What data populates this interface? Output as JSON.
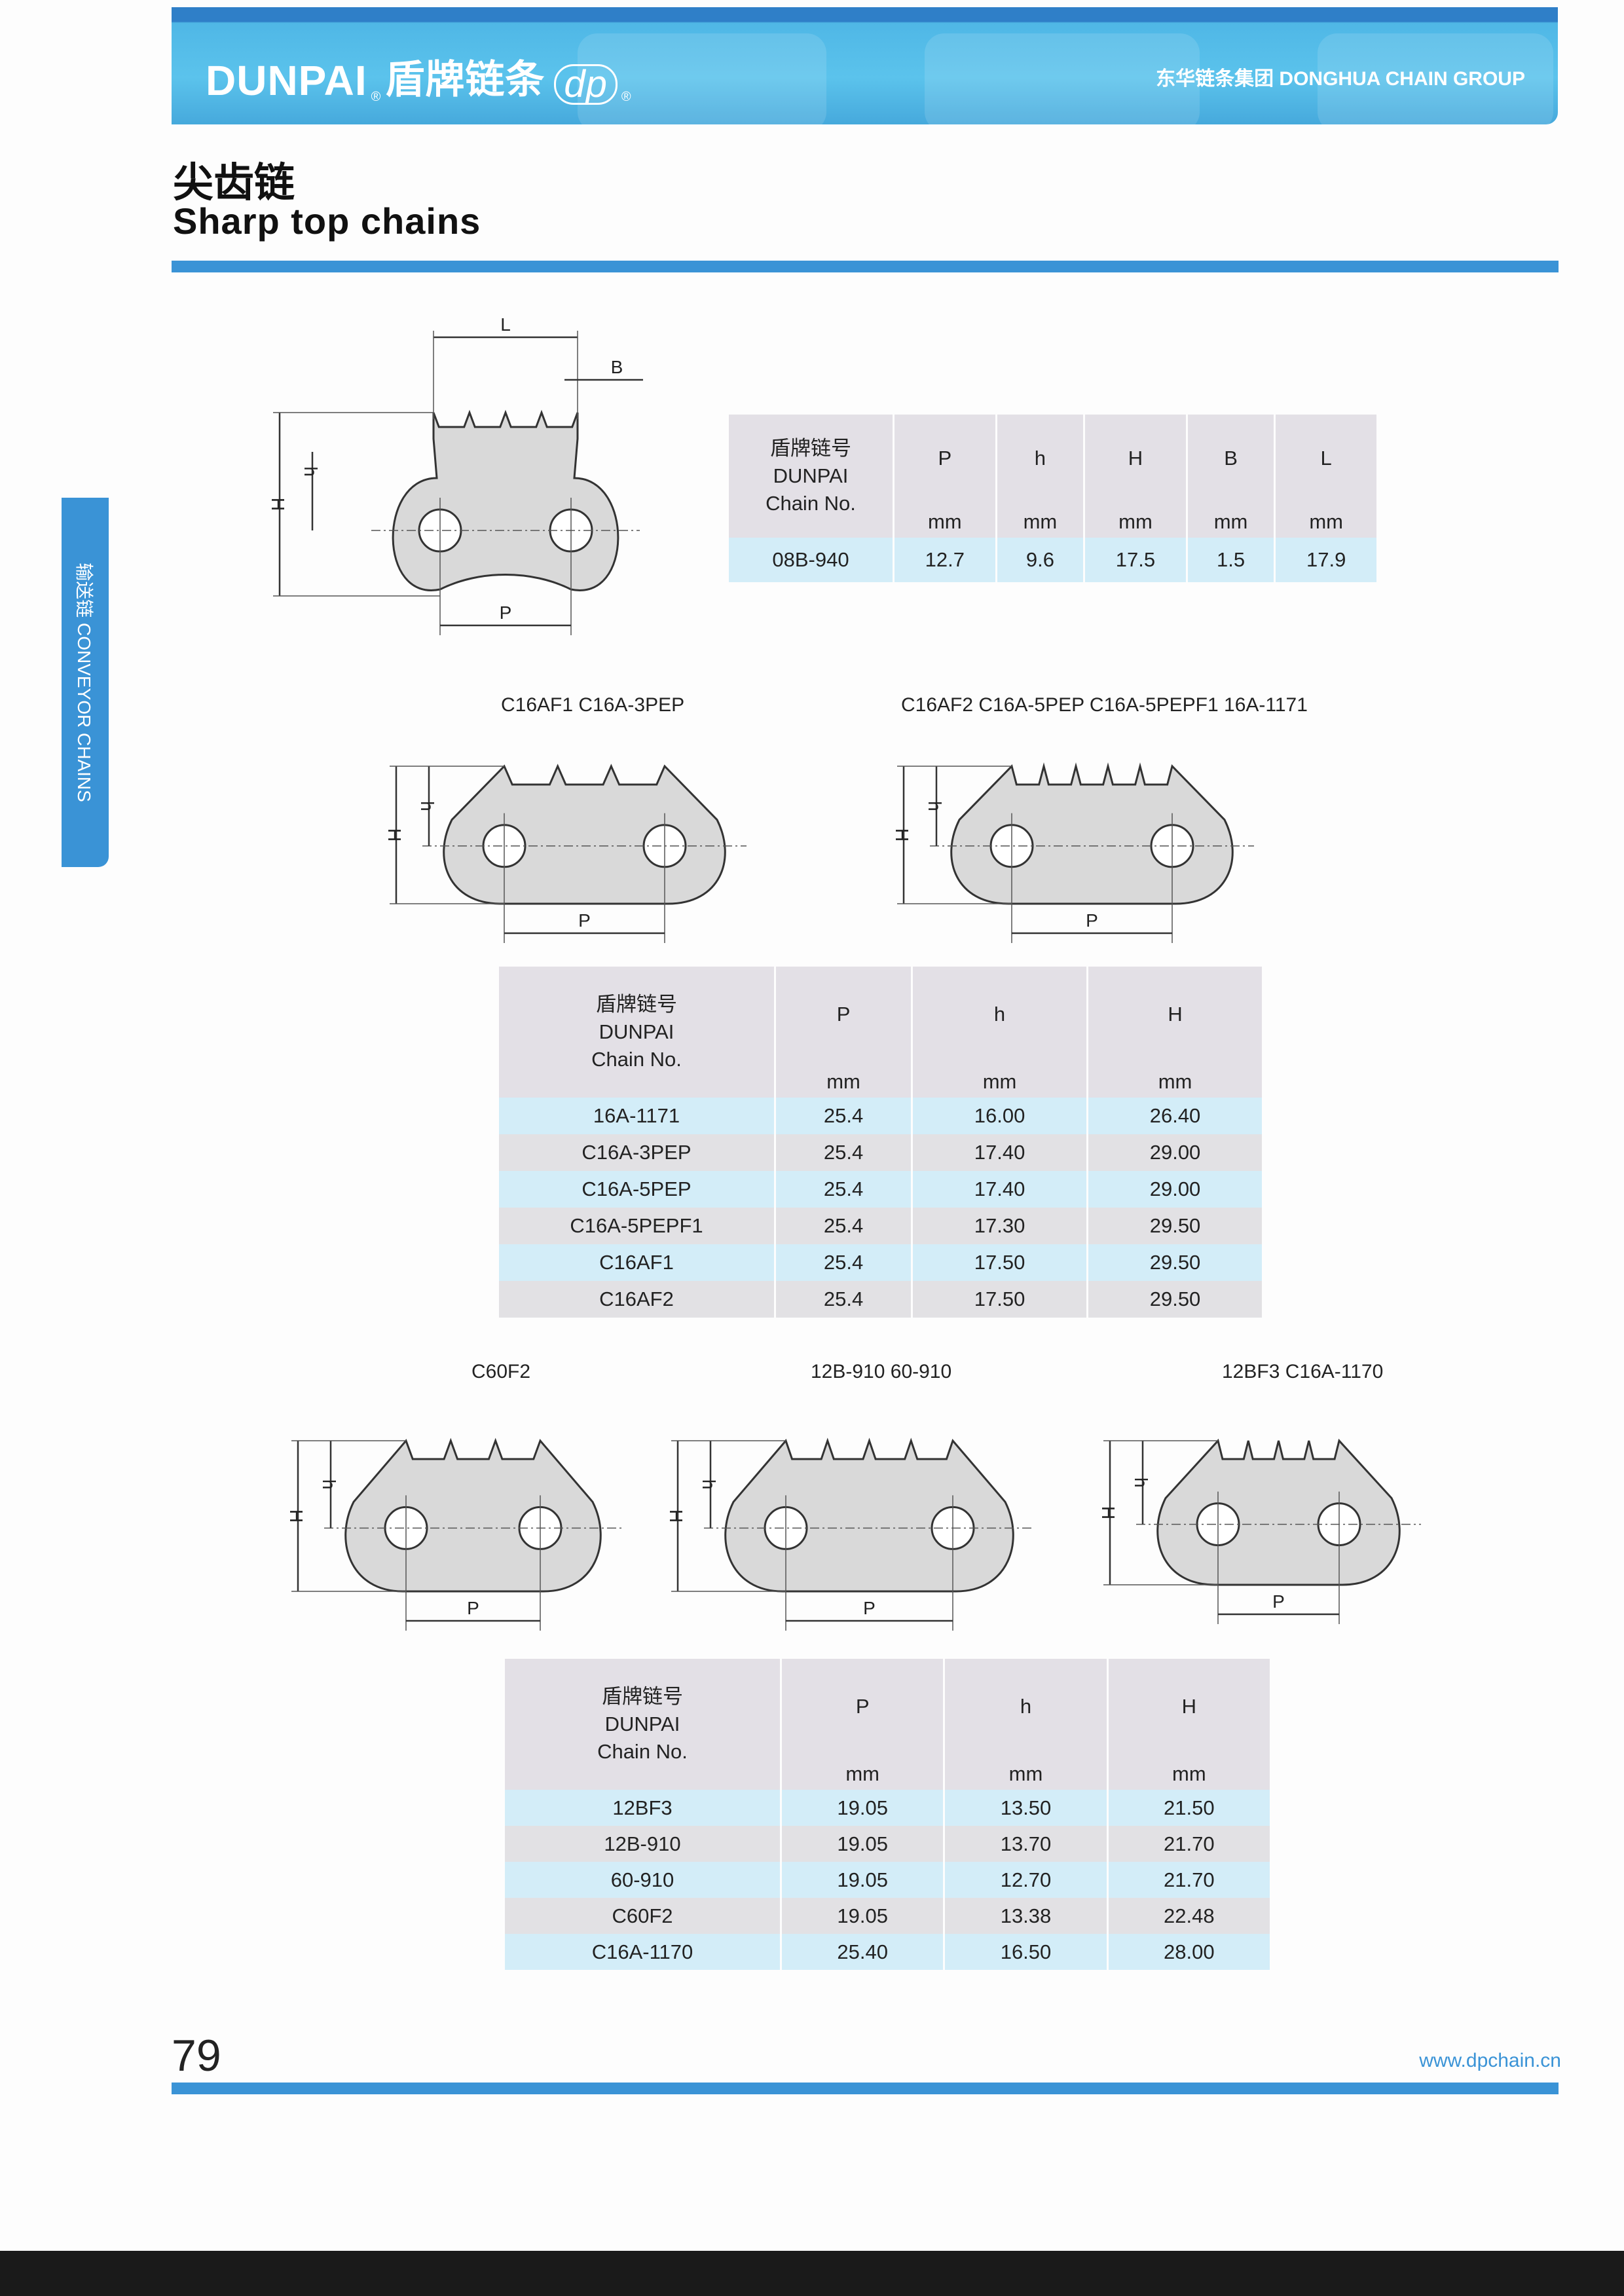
{
  "header": {
    "brand": "DUNPAI",
    "brand_cn": "盾牌链条",
    "logo_mark": "dp",
    "registered": "®",
    "group": "东华链条集团 DONGHUA CHAIN GROUP"
  },
  "title": {
    "cn": "尖齿链",
    "en": "Sharp top chains"
  },
  "side_tab": "输送链 CONVEYOR CHAINS",
  "diagrams": [
    {
      "caption": "",
      "labels": {
        "H": "H",
        "h": "h",
        "P": "P",
        "L": "L",
        "B": "B"
      }
    },
    {
      "caption": "C16AF1  C16A-3PEP",
      "labels": {
        "H": "H",
        "h": "h",
        "P": "P"
      }
    },
    {
      "caption": "C16AF2  C16A-5PEP  C16A-5PEPF1  16A-1171",
      "labels": {
        "H": "H",
        "h": "h",
        "P": "P"
      }
    },
    {
      "caption": "C60F2",
      "labels": {
        "H": "H",
        "h": "h",
        "P": "P"
      }
    },
    {
      "caption": "12B-910  60-910",
      "labels": {
        "H": "H",
        "h": "h",
        "P": "P"
      }
    },
    {
      "caption": "12BF3  C16A-1170",
      "labels": {
        "H": "H",
        "h": "h",
        "P": "P"
      }
    }
  ],
  "tables": [
    {
      "header": {
        "cn": "盾牌链号",
        "brand": "DUNPAI",
        "chain_no": "Chain No."
      },
      "columns": [
        "P",
        "h",
        "H",
        "B",
        "L"
      ],
      "units": [
        "mm",
        "mm",
        "mm",
        "mm",
        "mm"
      ],
      "rows": [
        [
          "08B-940",
          "12.7",
          "9.6",
          "17.5",
          "1.5",
          "17.9"
        ]
      ]
    },
    {
      "header": {
        "cn": "盾牌链号",
        "brand": "DUNPAI",
        "chain_no": "Chain No."
      },
      "columns": [
        "P",
        "h",
        "H"
      ],
      "units": [
        "mm",
        "mm",
        "mm"
      ],
      "rows": [
        [
          "16A-1171",
          "25.4",
          "16.00",
          "26.40"
        ],
        [
          "C16A-3PEP",
          "25.4",
          "17.40",
          "29.00"
        ],
        [
          "C16A-5PEP",
          "25.4",
          "17.40",
          "29.00"
        ],
        [
          "C16A-5PEPF1",
          "25.4",
          "17.30",
          "29.50"
        ],
        [
          "C16AF1",
          "25.4",
          "17.50",
          "29.50"
        ],
        [
          "C16AF2",
          "25.4",
          "17.50",
          "29.50"
        ]
      ]
    },
    {
      "header": {
        "cn": "盾牌链号",
        "brand": "DUNPAI",
        "chain_no": "Chain No."
      },
      "columns": [
        "P",
        "h",
        "H"
      ],
      "units": [
        "mm",
        "mm",
        "mm"
      ],
      "rows": [
        [
          "12BF3",
          "19.05",
          "13.50",
          "21.50"
        ],
        [
          "12B-910",
          "19.05",
          "13.70",
          "21.70"
        ],
        [
          "60-910",
          "19.05",
          "12.70",
          "21.70"
        ],
        [
          "C60F2",
          "19.05",
          "13.38",
          "22.48"
        ],
        [
          "C16A-1170",
          "25.40",
          "16.50",
          "28.00"
        ]
      ]
    }
  ],
  "footer": {
    "page_number": "79",
    "url": "www.dpchain.cn"
  },
  "colors": {
    "brand_blue": "#3a93d6",
    "row_blue": "#d3edf8",
    "row_gray": "#e2e1e4",
    "link_fill": "#d9d9d9"
  }
}
